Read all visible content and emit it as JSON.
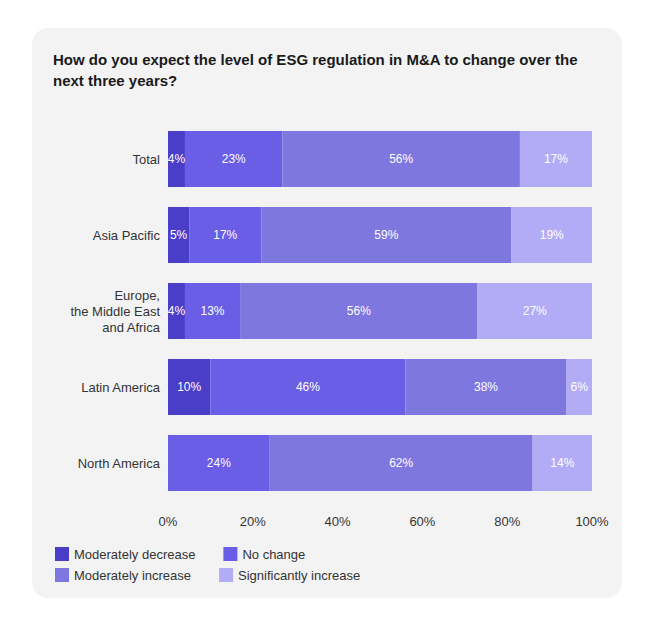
{
  "chart_data": {
    "type": "bar",
    "title": "How do you expect the level of ESG regulation in M&A to change over the\nnext three years?",
    "orientation": "horizontal",
    "stacked": true,
    "data_labels": true,
    "grid": false,
    "legend": "bottom-left",
    "categories": [
      "Total",
      "Asia Pacific",
      "Europe,\nthe Middle East\nand Africa",
      "Latin America",
      "North America"
    ],
    "series": [
      {
        "name": "Moderately decrease",
        "color": "#4a3dc8",
        "values": [
          4,
          5,
          4,
          10,
          null
        ],
        "value_labels": [
          "4%",
          "5%",
          "4%",
          "10%",
          null
        ]
      },
      {
        "name": "No change",
        "color": "#6a5de6",
        "values": [
          23,
          17,
          13,
          46,
          24
        ],
        "value_labels": [
          "23%",
          "17%",
          "13%",
          "46%",
          "24%"
        ]
      },
      {
        "name": "Moderately increase",
        "color": "#7e77e0",
        "values": [
          56,
          59,
          56,
          38,
          62
        ],
        "value_labels": [
          "56%",
          "59%",
          "56%",
          "38%",
          "62%"
        ]
      },
      {
        "name": "Significantly increase",
        "color": "#b2acf6",
        "values": [
          17,
          19,
          27,
          6,
          14
        ],
        "value_labels": [
          "17%",
          "19%",
          "27%",
          "6%",
          "14%"
        ]
      }
    ],
    "xlim": [
      0,
      100
    ],
    "xticks": [
      {
        "value": 0,
        "label": "0%"
      },
      {
        "value": 20,
        "label": "20%"
      },
      {
        "value": 40,
        "label": "40%"
      },
      {
        "value": 60,
        "label": "60%"
      },
      {
        "value": 80,
        "label": "80%"
      },
      {
        "value": 100,
        "label": "100%"
      }
    ]
  }
}
